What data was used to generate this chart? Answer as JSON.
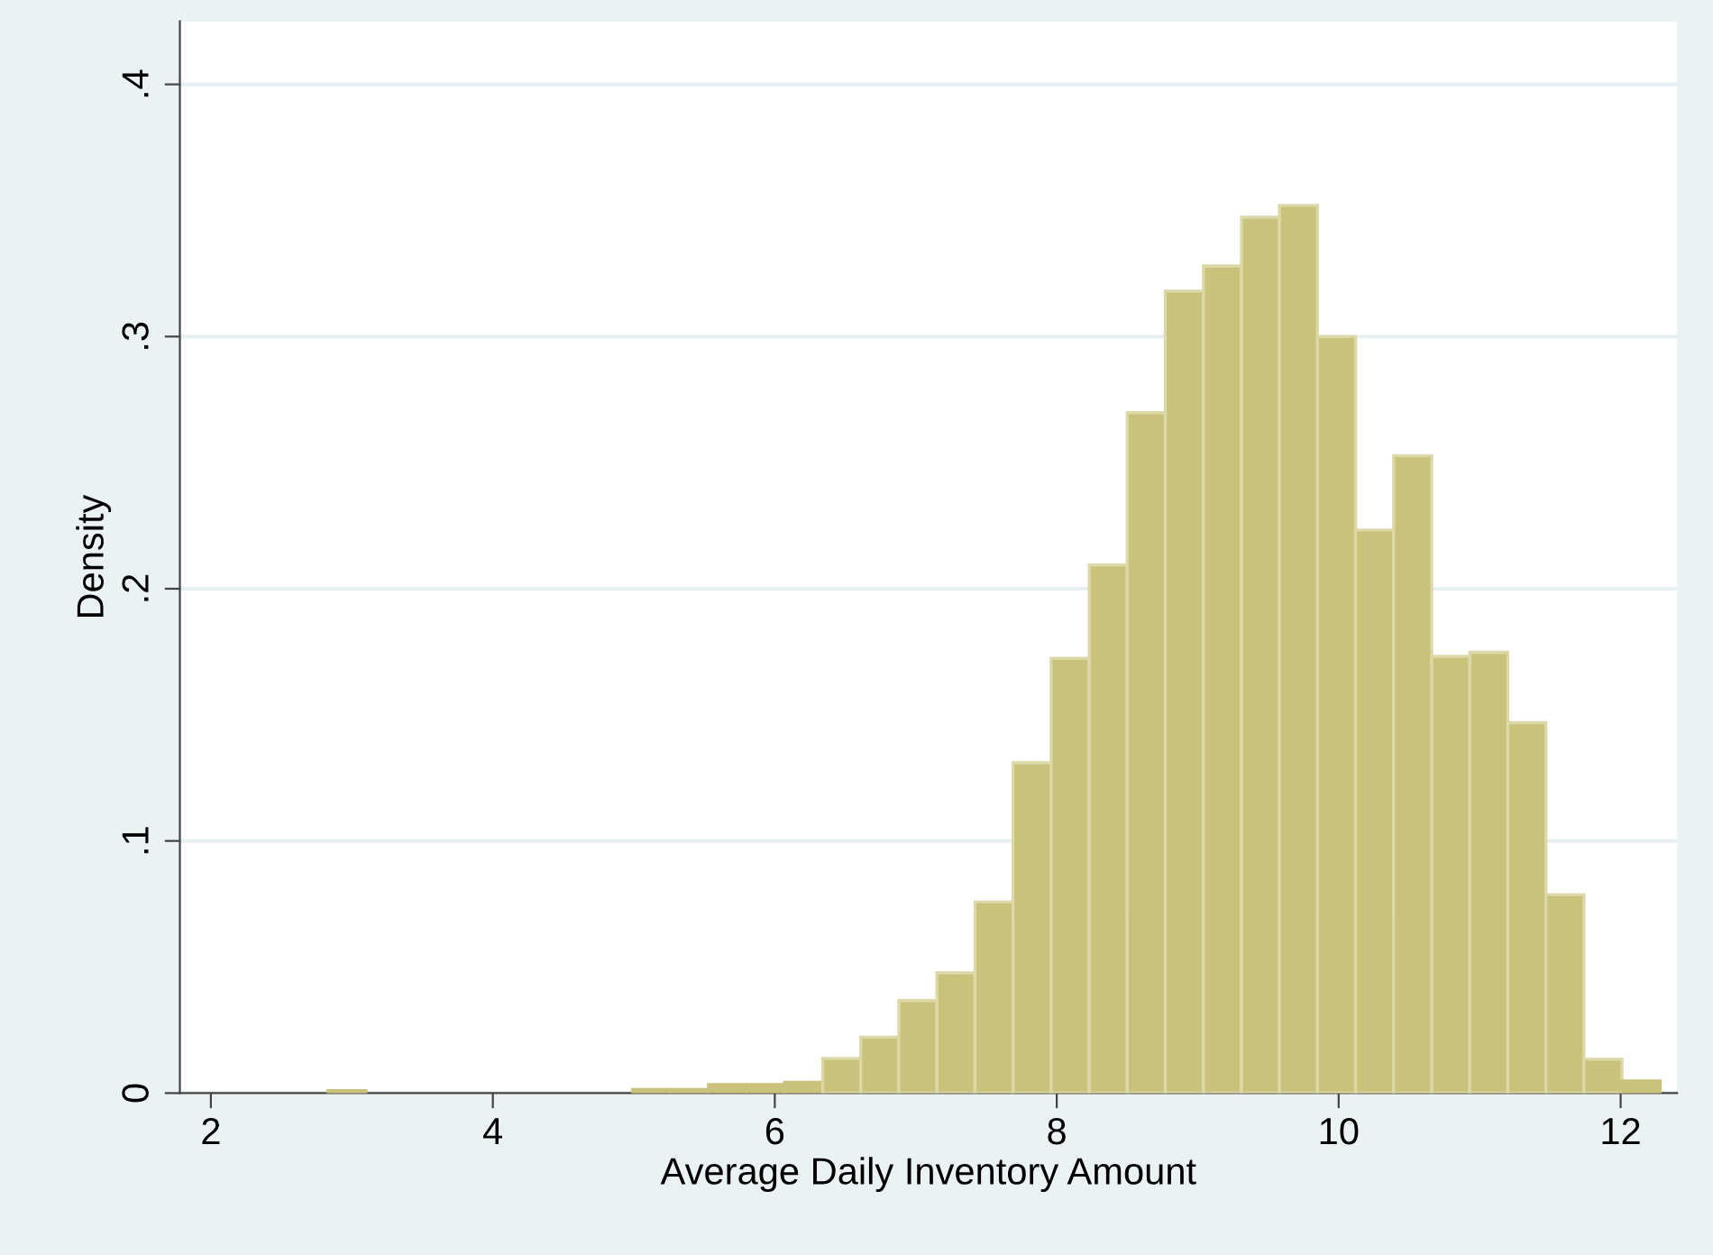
{
  "chart_data": {
    "type": "histogram",
    "xlabel": "Average Daily Inventory Amount",
    "ylabel": "Density",
    "bins": [
      2.83,
      3.1,
      3.37,
      3.64,
      3.91,
      4.18,
      4.45,
      4.72,
      4.99,
      5.26,
      5.53,
      5.8,
      6.07,
      6.34,
      6.61,
      6.88,
      7.15,
      7.42,
      7.69,
      7.96,
      8.23,
      8.5,
      8.77,
      9.04,
      9.31,
      9.58,
      9.85,
      10.12,
      10.39,
      10.66,
      10.93,
      11.2,
      11.47,
      11.74,
      12.01,
      12.28
    ],
    "values": [
      0.001,
      0,
      0,
      0,
      0,
      0,
      0,
      0,
      0.0014,
      0.0014,
      0.0034,
      0.0034,
      0.0043,
      0.0138,
      0.0222,
      0.0367,
      0.0477,
      0.0758,
      0.131,
      0.1724,
      0.2094,
      0.2698,
      0.318,
      0.328,
      0.3473,
      0.352,
      0.3,
      0.2233,
      0.2528,
      0.1732,
      0.1748,
      0.1469,
      0.0787,
      0.0134,
      0.0048
    ],
    "color": "#c9c27b",
    "xlim": [
      1.78,
      12.4
    ],
    "ylim": [
      0,
      0.425
    ],
    "xticks": [
      2,
      4,
      6,
      8,
      10,
      12
    ],
    "yticks": [
      0,
      {
        "value": 0.1,
        "label": ".1"
      },
      {
        "value": 0.2,
        "label": ".2"
      },
      {
        "value": 0.3,
        "label": ".3"
      },
      {
        "value": 0.4,
        "label": ".4"
      }
    ],
    "grid": "y"
  }
}
